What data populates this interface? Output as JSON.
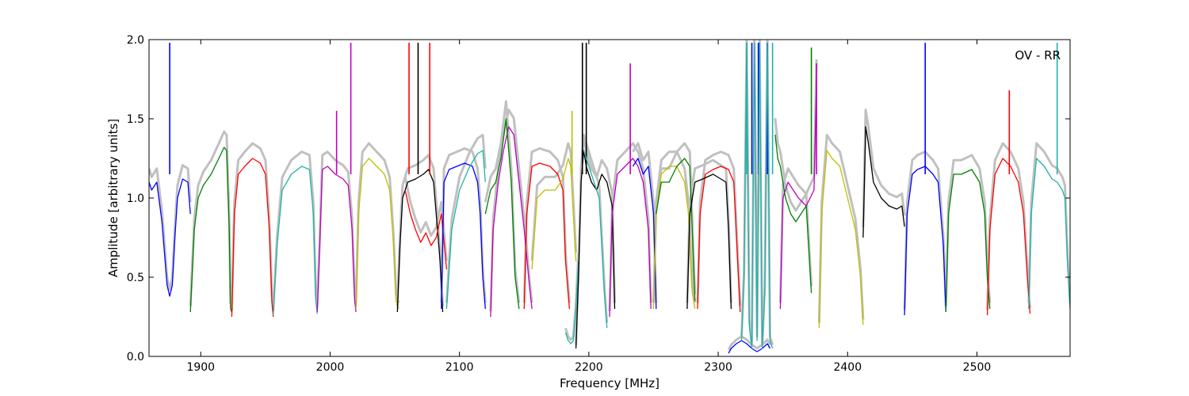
{
  "chart_data": {
    "type": "line",
    "title": "",
    "annotation": "OV - RR",
    "xlabel": "Frequency [MHz]",
    "ylabel": "Amplitude [arbitrary units]",
    "xlim": [
      1860,
      2572
    ],
    "ylim": [
      0.0,
      2.0
    ],
    "xticks": [
      1900,
      2000,
      2100,
      2200,
      2300,
      2400,
      2500
    ],
    "yticks": [
      0.0,
      0.5,
      1.0,
      1.5,
      2.0
    ],
    "grid": false,
    "legend": "none",
    "background_color": "#c0c0c0",
    "series": [
      {
        "color": "#0000ff",
        "x": [
          1860,
          1862,
          1866,
          1870,
          1874,
          1876,
          1878,
          1880,
          1882,
          1886,
          1890,
          1892
        ],
        "y": [
          1.1,
          1.05,
          1.1,
          0.85,
          0.45,
          0.38,
          0.45,
          0.75,
          1.0,
          1.12,
          1.1,
          0.9
        ],
        "spikes": [
          [
            1876,
            1.98
          ]
        ]
      },
      {
        "color": "#008000",
        "x": [
          1892,
          1895,
          1898,
          1902,
          1908,
          1914,
          1918,
          1920,
          1922,
          1923,
          1924
        ],
        "y": [
          0.28,
          0.8,
          1.0,
          1.08,
          1.15,
          1.25,
          1.32,
          1.3,
          0.8,
          0.3,
          0.28
        ]
      },
      {
        "color": "#ff0000",
        "x": [
          1924,
          1926,
          1929,
          1934,
          1940,
          1946,
          1950,
          1953,
          1955,
          1956
        ],
        "y": [
          0.25,
          0.9,
          1.15,
          1.2,
          1.25,
          1.22,
          1.15,
          0.8,
          0.35,
          0.25
        ]
      },
      {
        "color": "#20b2aa",
        "x": [
          1956,
          1959,
          1963,
          1970,
          1978,
          1984,
          1987,
          1989,
          1990
        ],
        "y": [
          0.26,
          0.7,
          1.05,
          1.15,
          1.2,
          1.18,
          0.9,
          0.35,
          0.27
        ]
      },
      {
        "color": "#bf00bf",
        "x": [
          1990,
          1992,
          1994,
          1998,
          2004,
          2010,
          2014,
          2017,
          2019,
          2020
        ],
        "y": [
          0.28,
          0.7,
          1.18,
          1.2,
          1.15,
          1.12,
          1.08,
          0.8,
          0.35,
          0.28
        ],
        "spikes": [
          [
            2005,
            1.55
          ],
          [
            2016,
            1.98
          ]
        ]
      },
      {
        "color": "#bfbf00",
        "x": [
          2020,
          2022,
          2025,
          2030,
          2036,
          2042,
          2046,
          2049,
          2051,
          2053
        ],
        "y": [
          0.3,
          0.9,
          1.2,
          1.25,
          1.2,
          1.15,
          1.05,
          0.7,
          0.35,
          0.3
        ]
      },
      {
        "color": "#000000",
        "x": [
          2052,
          2054,
          2056,
          2060,
          2066,
          2072,
          2076,
          2080,
          2085,
          2087
        ],
        "y": [
          0.28,
          0.7,
          1.0,
          1.1,
          1.12,
          1.15,
          1.18,
          1.1,
          0.6,
          0.28
        ],
        "spikes": [
          [
            2068,
            1.98
          ]
        ]
      },
      {
        "color": "#ff0000",
        "x": [
          2058,
          2062,
          2066,
          2070,
          2074,
          2078,
          2082,
          2086,
          2090
        ],
        "y": [
          1.05,
          0.9,
          0.8,
          0.72,
          0.78,
          0.7,
          0.75,
          0.9,
          0.55
        ],
        "spikes": [
          [
            2061,
            1.98
          ],
          [
            2077,
            1.98
          ]
        ]
      },
      {
        "color": "#0000ff",
        "x": [
          2086,
          2088,
          2092,
          2098,
          2104,
          2110,
          2114,
          2116,
          2118,
          2120
        ],
        "y": [
          0.3,
          1.1,
          1.18,
          1.2,
          1.22,
          1.2,
          1.1,
          0.9,
          0.5,
          0.3
        ]
      },
      {
        "color": "#20b2aa",
        "x": [
          2090,
          2094,
          2100,
          2108,
          2114,
          2118,
          2120
        ],
        "y": [
          0.3,
          0.8,
          1.05,
          1.2,
          1.28,
          1.3,
          1.1
        ]
      },
      {
        "color": "#bf00bf",
        "x": [
          2124,
          2126,
          2130,
          2134,
          2138,
          2142,
          2146,
          2150,
          2154,
          2156
        ],
        "y": [
          0.25,
          0.8,
          1.1,
          1.3,
          1.45,
          1.4,
          1.1,
          0.8,
          0.45,
          0.3
        ]
      },
      {
        "color": "#008000",
        "x": [
          2120,
          2124,
          2128,
          2132,
          2136,
          2140,
          2143,
          2146
        ],
        "y": [
          0.9,
          1.05,
          1.1,
          1.25,
          1.5,
          1.1,
          0.5,
          0.3
        ]
      },
      {
        "color": "#ff0000",
        "x": [
          2150,
          2152,
          2156,
          2162,
          2170,
          2176,
          2180,
          2182,
          2185
        ],
        "y": [
          0.3,
          0.9,
          1.2,
          1.22,
          1.2,
          1.15,
          1.05,
          0.6,
          0.3
        ]
      },
      {
        "color": "#bfbf00",
        "x": [
          2156,
          2160,
          2166,
          2174,
          2180,
          2184,
          2186,
          2188,
          2190
        ],
        "y": [
          0.55,
          1.0,
          1.05,
          1.05,
          1.12,
          1.25,
          1.2,
          0.9,
          0.6
        ],
        "spikes": [
          [
            2187,
            1.55
          ]
        ]
      },
      {
        "color": "#20b2aa",
        "x": [
          2182,
          2184,
          2186,
          2188,
          2190,
          2192
        ],
        "y": [
          0.15,
          0.1,
          0.08,
          0.1,
          0.3,
          0.6
        ]
      },
      {
        "color": "#000000",
        "x": [
          2190,
          2192,
          2194,
          2196,
          2198,
          2202,
          2206,
          2210,
          2214,
          2218,
          2220
        ],
        "y": [
          0.05,
          0.5,
          1.1,
          1.3,
          1.2,
          1.1,
          1.05,
          1.15,
          1.1,
          0.95,
          0.3
        ],
        "spikes": [
          [
            2195,
            1.98
          ],
          [
            2198,
            1.98
          ]
        ]
      },
      {
        "color": "#20b2aa",
        "x": [
          2196,
          2200,
          2204,
          2208,
          2210,
          2212,
          2214
        ],
        "y": [
          1.3,
          1.2,
          1.1,
          1.0,
          0.7,
          0.4,
          0.18
        ]
      },
      {
        "color": "#bf00bf",
        "x": [
          2216,
          2218,
          2222,
          2228,
          2234,
          2238,
          2242,
          2246,
          2248
        ],
        "y": [
          0.25,
          0.9,
          1.15,
          1.2,
          1.25,
          1.2,
          1.1,
          0.8,
          0.3
        ],
        "spikes": [
          [
            2232,
            1.85
          ]
        ]
      },
      {
        "color": "#0000ff",
        "x": [
          2234,
          2238,
          2242,
          2246,
          2250,
          2252
        ],
        "y": [
          1.2,
          1.25,
          1.15,
          1.2,
          0.9,
          0.3
        ]
      },
      {
        "color": "#bfbf00",
        "x": [
          2250,
          2252,
          2256,
          2262,
          2268,
          2274,
          2277,
          2280,
          2282
        ],
        "y": [
          0.3,
          0.9,
          1.15,
          1.2,
          1.2,
          1.1,
          0.9,
          0.4,
          0.3
        ]
      },
      {
        "color": "#008000",
        "x": [
          2252,
          2256,
          2262,
          2268,
          2274,
          2278,
          2282
        ],
        "y": [
          0.9,
          1.1,
          1.1,
          1.2,
          1.25,
          1.2,
          0.35
        ]
      },
      {
        "color": "#ff0000",
        "x": [
          2284,
          2286,
          2290,
          2296,
          2302,
          2308,
          2312,
          2315,
          2317
        ],
        "y": [
          0.3,
          0.9,
          1.15,
          1.18,
          1.2,
          1.18,
          1.1,
          0.6,
          0.28
        ]
      },
      {
        "color": "#000000",
        "x": [
          2276,
          2278,
          2282,
          2288,
          2296,
          2302,
          2306,
          2308,
          2310
        ],
        "y": [
          0.3,
          0.9,
          1.1,
          1.12,
          1.15,
          1.12,
          1.1,
          0.8,
          0.3
        ]
      },
      {
        "color": "#0000ff",
        "x": [
          2308,
          2310,
          2314,
          2318,
          2322,
          2326,
          2330,
          2334,
          2338,
          2340
        ],
        "y": [
          0.02,
          0.05,
          0.08,
          0.1,
          0.08,
          0.05,
          0.03,
          0.05,
          0.08,
          0.05
        ],
        "spikes": [
          [
            2326,
            1.98
          ],
          [
            2331,
            1.98
          ],
          [
            2338,
            1.98
          ]
        ]
      },
      {
        "color": "#20b2aa",
        "x": [
          2318,
          2320,
          2322,
          2324,
          2326,
          2328,
          2330,
          2332,
          2334,
          2336,
          2338,
          2340,
          2342
        ],
        "y": [
          0.1,
          0.5,
          1.98,
          0.2,
          0.05,
          1.98,
          0.1,
          1.98,
          0.05,
          0.4,
          1.98,
          0.1,
          0.05
        ],
        "spikes": [
          [
            2322,
            1.98
          ],
          [
            2342,
            1.98
          ]
        ]
      },
      {
        "color": "#bf00bf",
        "x": [
          2348,
          2350,
          2354,
          2358,
          2362,
          2368,
          2374,
          2376
        ],
        "y": [
          0.3,
          1.0,
          1.1,
          1.05,
          1.0,
          0.95,
          1.05,
          1.75
        ],
        "spikes": [
          [
            2376,
            1.85
          ]
        ]
      },
      {
        "color": "#008000",
        "x": [
          2344,
          2346,
          2348,
          2352,
          2356,
          2360,
          2364,
          2368,
          2372
        ],
        "y": [
          1.4,
          1.25,
          1.2,
          1.0,
          0.9,
          0.85,
          0.9,
          0.95,
          0.4
        ],
        "spikes": [
          [
            2372,
            1.95
          ]
        ]
      },
      {
        "color": "#bfbf00",
        "x": [
          2378,
          2380,
          2384,
          2388,
          2394,
          2400,
          2406,
          2410,
          2412
        ],
        "y": [
          0.18,
          0.9,
          1.3,
          1.25,
          1.2,
          1.0,
          0.8,
          0.5,
          0.2
        ]
      },
      {
        "color": "#000000",
        "x": [
          2412,
          2414,
          2416,
          2420,
          2426,
          2432,
          2438,
          2442,
          2444
        ],
        "y": [
          0.75,
          1.45,
          1.35,
          1.1,
          1.0,
          0.95,
          0.93,
          0.95,
          0.82
        ]
      },
      {
        "color": "#0000ff",
        "x": [
          2444,
          2446,
          2450,
          2454,
          2460,
          2466,
          2470,
          2474,
          2476
        ],
        "y": [
          0.26,
          0.9,
          1.15,
          1.18,
          1.2,
          1.15,
          1.1,
          0.7,
          0.28
        ],
        "spikes": [
          [
            2460,
            1.98
          ]
        ]
      },
      {
        "color": "#008000",
        "x": [
          2476,
          2478,
          2482,
          2488,
          2496,
          2502,
          2506,
          2508,
          2510
        ],
        "y": [
          0.28,
          0.9,
          1.15,
          1.15,
          1.18,
          1.1,
          0.9,
          0.5,
          0.3
        ]
      },
      {
        "color": "#ff0000",
        "x": [
          2508,
          2510,
          2514,
          2520,
          2526,
          2532,
          2536,
          2539,
          2541
        ],
        "y": [
          0.26,
          0.8,
          1.15,
          1.25,
          1.2,
          1.1,
          0.9,
          0.5,
          0.27
        ],
        "spikes": [
          [
            2525,
            1.68
          ]
        ]
      },
      {
        "color": "#20b2aa",
        "x": [
          2540,
          2542,
          2546,
          2552,
          2558,
          2562,
          2566,
          2568,
          2570,
          2572
        ],
        "y": [
          0.3,
          0.9,
          1.25,
          1.2,
          1.12,
          1.1,
          1.05,
          1.0,
          0.6,
          0.3
        ],
        "spikes": [
          [
            2562,
            1.98
          ]
        ]
      }
    ]
  }
}
